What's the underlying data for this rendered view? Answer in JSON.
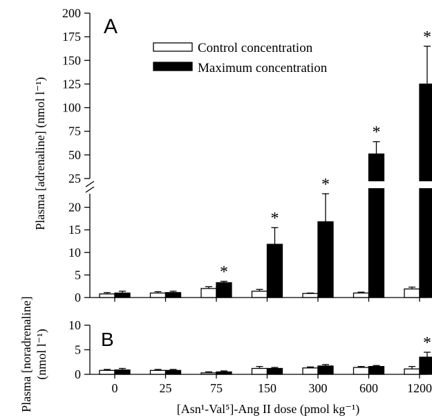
{
  "chart_data": [
    {
      "type": "bar",
      "panel_label": "A",
      "ylabel": "Plasma [adrenaline] (nmol l⁻¹)",
      "categories": [
        "0",
        "25",
        "75",
        "150",
        "300",
        "600",
        "1200"
      ],
      "y_axis_break": true,
      "ylim_lower": [
        0,
        23
      ],
      "ylim_upper": [
        25,
        200
      ],
      "yticks_lower": [
        "0",
        "5",
        "10",
        "15",
        "20"
      ],
      "yticks_upper": [
        "25",
        "50",
        "75",
        "100",
        "125",
        "150",
        "175",
        "200"
      ],
      "legend": {
        "position": "top-right",
        "items": [
          {
            "label": "Control concentration",
            "fill": "#ffffff"
          },
          {
            "label": "Maximum concentration",
            "fill": "#000000"
          }
        ]
      },
      "series": [
        {
          "name": "Control concentration",
          "color": "#ffffff",
          "values": [
            0.8,
            1.0,
            2.0,
            1.4,
            0.9,
            1.0,
            1.9
          ],
          "errors": [
            0.3,
            0.3,
            0.4,
            0.4,
            0.1,
            0.2,
            0.4
          ]
        },
        {
          "name": "Maximum concentration",
          "color": "#000000",
          "values": [
            1.0,
            1.1,
            3.3,
            11.8,
            16.8,
            51,
            125
          ],
          "errors": [
            0.4,
            0.3,
            0.3,
            3.7,
            6.2,
            13,
            40
          ]
        }
      ],
      "significance_marker": "*",
      "significant": [
        false,
        false,
        true,
        true,
        true,
        true,
        true
      ]
    },
    {
      "type": "bar",
      "panel_label": "B",
      "ylabel_line1": "Plasma [noradrenaline]",
      "ylabel_line2": "(nmol l⁻¹)",
      "categories": [
        "0",
        "25",
        "75",
        "150",
        "300",
        "600",
        "1200"
      ],
      "ylim": [
        0,
        10
      ],
      "yticks": [
        "0",
        "5",
        "10"
      ],
      "xlabel": "[Asn¹-Val⁵]-Ang II dose (pmol kg⁻¹)",
      "series": [
        {
          "name": "Control concentration",
          "color": "#ffffff",
          "values": [
            0.8,
            0.8,
            0.3,
            1.2,
            1.3,
            1.4,
            1.1
          ],
          "errors": [
            0.2,
            0.2,
            0.2,
            0.4,
            0.2,
            0.2,
            0.5
          ]
        },
        {
          "name": "Maximum concentration",
          "color": "#000000",
          "values": [
            0.9,
            0.8,
            0.5,
            1.2,
            1.7,
            1.6,
            3.5
          ],
          "errors": [
            0.3,
            0.2,
            0.2,
            0.2,
            0.3,
            0.2,
            1.0
          ]
        }
      ],
      "significance_marker": "*",
      "significant": [
        false,
        false,
        false,
        false,
        false,
        false,
        true
      ]
    }
  ]
}
